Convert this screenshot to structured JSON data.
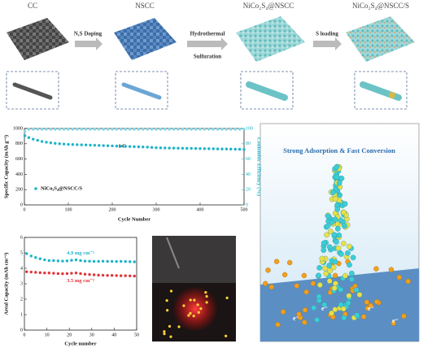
{
  "chart_data": [
    {
      "type": "scatter",
      "xlabel": "Cycle Number",
      "ylabel": "Specific Capacity (mAh g⁻¹)",
      "y2label": "Coulombic Efficiency (%)",
      "annotation": "1 C",
      "legend": "lower left",
      "xlim": [
        0,
        500
      ],
      "xticks": [
        0,
        100,
        200,
        300,
        400,
        500
      ],
      "ylim": [
        0,
        1000
      ],
      "yticks": [
        0,
        200,
        400,
        600,
        800,
        1000
      ],
      "y2lim": [
        0,
        100
      ],
      "y2ticks": [
        0,
        20,
        40,
        60,
        80,
        100
      ],
      "x": [
        1,
        10,
        20,
        30,
        40,
        50,
        60,
        70,
        80,
        90,
        100,
        110,
        120,
        130,
        140,
        150,
        160,
        170,
        180,
        190,
        200,
        210,
        220,
        230,
        240,
        250,
        260,
        270,
        280,
        290,
        300,
        310,
        320,
        330,
        340,
        350,
        360,
        370,
        380,
        390,
        400,
        410,
        420,
        430,
        440,
        450,
        460,
        470,
        480,
        490,
        500
      ],
      "series": [
        {
          "name": "NiCo₂S₄@NSCC/S",
          "color": "#1eb3c8",
          "values": [
            905,
            880,
            860,
            845,
            830,
            820,
            812,
            805,
            800,
            796,
            792,
            790,
            788,
            786,
            784,
            782,
            780,
            778,
            776,
            774,
            772,
            770,
            768,
            766,
            764,
            762,
            760,
            758,
            756,
            752,
            748,
            746,
            745,
            744,
            743,
            742,
            741,
            740,
            739,
            738,
            737,
            736,
            735,
            734,
            733,
            732,
            731,
            730,
            729,
            728,
            725
          ]
        },
        {
          "color": "#7fd6e6",
          "axis": "y2",
          "values": [
            96,
            99,
            99,
            99,
            99,
            99,
            99,
            99,
            99,
            99,
            99,
            99,
            99,
            99,
            99,
            99,
            99,
            99,
            99,
            99,
            99,
            99,
            99,
            99,
            99,
            99,
            99,
            99,
            99,
            99,
            99,
            99,
            99,
            99,
            99,
            99,
            99,
            99,
            99,
            99,
            99,
            99,
            99,
            99,
            99,
            99,
            99,
            99,
            99,
            99,
            99
          ]
        }
      ]
    },
    {
      "type": "scatter",
      "xlabel": "Cycle number",
      "ylabel": "Areal Capacity (mAh cm⁻²)",
      "legend": "inline",
      "xlim": [
        0,
        50
      ],
      "xticks": [
        0,
        10,
        20,
        30,
        40,
        50
      ],
      "ylim": [
        0,
        6
      ],
      "yticks": [
        0,
        1,
        2,
        3,
        4,
        5,
        6
      ],
      "x": [
        1,
        3,
        5,
        7,
        9,
        11,
        13,
        15,
        17,
        19,
        21,
        23,
        25,
        27,
        29,
        31,
        33,
        35,
        37,
        39,
        41,
        43,
        45,
        47,
        49
      ],
      "series": [
        {
          "name": "4.9 mg cm⁻²",
          "color": "#1eb3c8",
          "values": [
            4.95,
            4.8,
            4.7,
            4.62,
            4.55,
            4.5,
            4.5,
            4.48,
            4.47,
            4.48,
            4.52,
            4.55,
            4.5,
            4.47,
            4.46,
            4.45,
            4.45,
            4.46,
            4.45,
            4.45,
            4.44,
            4.45,
            4.44,
            4.43,
            4.42
          ]
        },
        {
          "name": "3.5 mg cm⁻²",
          "color": "#e0363a",
          "values": [
            3.78,
            3.76,
            3.74,
            3.72,
            3.7,
            3.7,
            3.68,
            3.66,
            3.65,
            3.66,
            3.68,
            3.7,
            3.66,
            3.62,
            3.6,
            3.58,
            3.56,
            3.55,
            3.54,
            3.54,
            3.53,
            3.52,
            3.52,
            3.51,
            3.5
          ]
        }
      ]
    }
  ],
  "schematic": {
    "stages": [
      "CC",
      "NSCC",
      "NiCo₂S₄@NSCC",
      "NiCo₂S₄@NSCC/S"
    ],
    "steps": [
      "N,S Doping",
      "Hydrothermal",
      "Sulfuration",
      "S loading"
    ]
  },
  "mechanism": {
    "title": "Strong Adsorption & Fast Conversion",
    "electron_labels": [
      "e⁻",
      "e⁻",
      "e⁻",
      "e⁻"
    ]
  }
}
